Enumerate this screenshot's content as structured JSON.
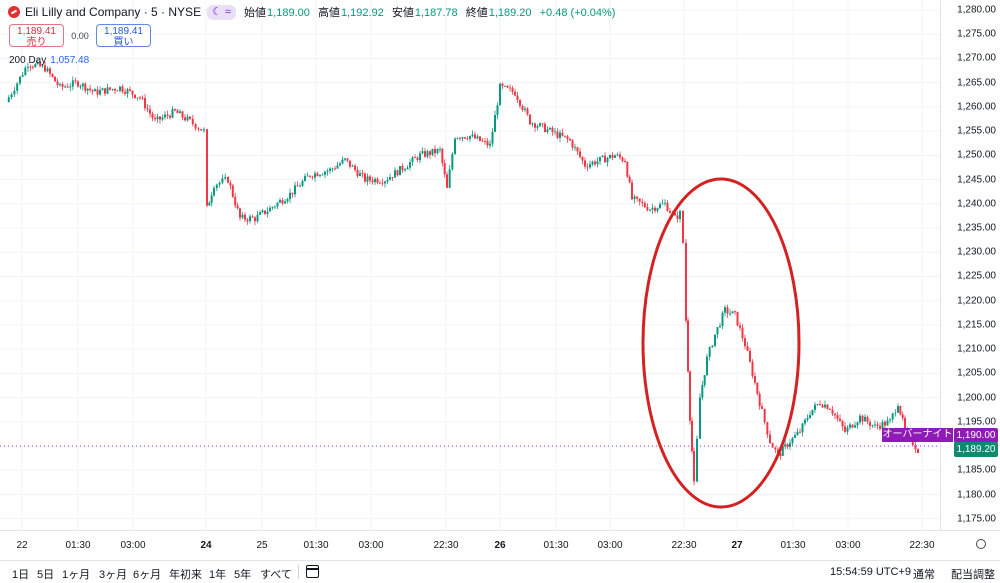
{
  "header": {
    "symbol_title": "Eli Lilly and Company · 5 · NYSE",
    "session_badge": "☾ ≈",
    "ohlc": {
      "open_label": "始値",
      "open": "1,189.00",
      "high_label": "高値",
      "high": "1,192.92",
      "low_label": "安値",
      "low": "1,187.78",
      "close_label": "終値",
      "close": "1,189.20",
      "change": "+0.48 (+0.04%)"
    }
  },
  "trade": {
    "sell_price": "1,189.41",
    "sell_label": "売り",
    "spread": "0.00",
    "buy_price": "1,189.41",
    "buy_label": "買い"
  },
  "ma_legend": {
    "label": "200 Day",
    "value": "1,057.48"
  },
  "price_axis": [
    "1,280.00",
    "1,275.00",
    "1,270.00",
    "1,265.00",
    "1,260.00",
    "1,255.00",
    "1,250.00",
    "1,245.00",
    "1,240.00",
    "1,235.00",
    "1,230.00",
    "1,225.00",
    "1,220.00",
    "1,215.00",
    "1,210.00",
    "1,205.00",
    "1,200.00",
    "1,195.00",
    "1,190.00",
    "1,185.00",
    "1,180.00",
    "1,175.00"
  ],
  "price_tags": {
    "post_label": "オーバーナイト",
    "post_price": "1,190.00",
    "last_price": "1,189.20"
  },
  "time_axis": [
    "22",
    "01:30",
    "03:00",
    "24",
    "25",
    "01:30",
    "03:00",
    "22:30",
    "26",
    "01:30",
    "03:00",
    "22:30",
    "27",
    "01:30",
    "03:00",
    "22:30"
  ],
  "range_buttons": [
    "1日",
    "5日",
    "1ヶ月",
    "3ヶ月",
    "6ヶ月",
    "年初来",
    "1年",
    "5年",
    "すべて"
  ],
  "status": {
    "clock": "15:54:59 UTC+9",
    "session": "通常",
    "adjust": "配当調整"
  },
  "colors": {
    "up": "#089981",
    "down": "#f23645",
    "annotation": "#d42222",
    "post_market": "#8e1bb5",
    "ma": "#2962ff"
  },
  "chart_data": {
    "type": "candlestick",
    "title": "Eli Lilly and Company · 5 · NYSE",
    "interval": "5 minutes",
    "ylim": [
      1173,
      1282
    ],
    "y_ticks": [
      1175,
      1180,
      1185,
      1190,
      1195,
      1200,
      1205,
      1210,
      1215,
      1220,
      1225,
      1230,
      1235,
      1240,
      1245,
      1250,
      1255,
      1260,
      1265,
      1270,
      1275,
      1280
    ],
    "x_ticks": [
      "22",
      "01:30",
      "03:00",
      "24",
      "25",
      "01:30",
      "03:00",
      "22:30",
      "26",
      "01:30",
      "03:00",
      "22:30",
      "27",
      "01:30",
      "03:00",
      "22:30"
    ],
    "path_approx": [
      {
        "x": "22",
        "close": 1261
      },
      {
        "x": "22 00:30",
        "close": 1269
      },
      {
        "x": "01:30",
        "close": 1265
      },
      {
        "x": "03:00",
        "close": 1260
      },
      {
        "x": "before 24",
        "close": 1255
      },
      {
        "x": "24 open",
        "close": 1239
      },
      {
        "x": "24 mid",
        "close": 1246
      },
      {
        "x": "25",
        "close": 1236
      },
      {
        "x": "01:30",
        "close": 1245
      },
      {
        "x": "03:00",
        "close": 1246
      },
      {
        "x": "before 22:30",
        "close": 1250
      },
      {
        "x": "22:30",
        "close": 1256
      },
      {
        "x": "26",
        "close": 1264
      },
      {
        "x": "01:30",
        "close": 1253
      },
      {
        "x": "03:00",
        "close": 1248
      },
      {
        "x": "after 03:00",
        "close": 1240
      },
      {
        "x": "before 22:30",
        "close": 1238
      },
      {
        "x": "22:30 drop",
        "close": 1182
      },
      {
        "x": "rebound",
        "close": 1218
      },
      {
        "x": "27",
        "close": 1210
      },
      {
        "x": "before 01:30",
        "close": 1187
      },
      {
        "x": "01:30",
        "close": 1197
      },
      {
        "x": "03:00",
        "close": 1193
      },
      {
        "x": "22:30",
        "close": 1189.2
      }
    ],
    "series": [
      {
        "name": "200 Day",
        "value": 1057.48
      }
    ],
    "grid": true,
    "annotation": "red ellipse around the sharp drop and rebound"
  }
}
